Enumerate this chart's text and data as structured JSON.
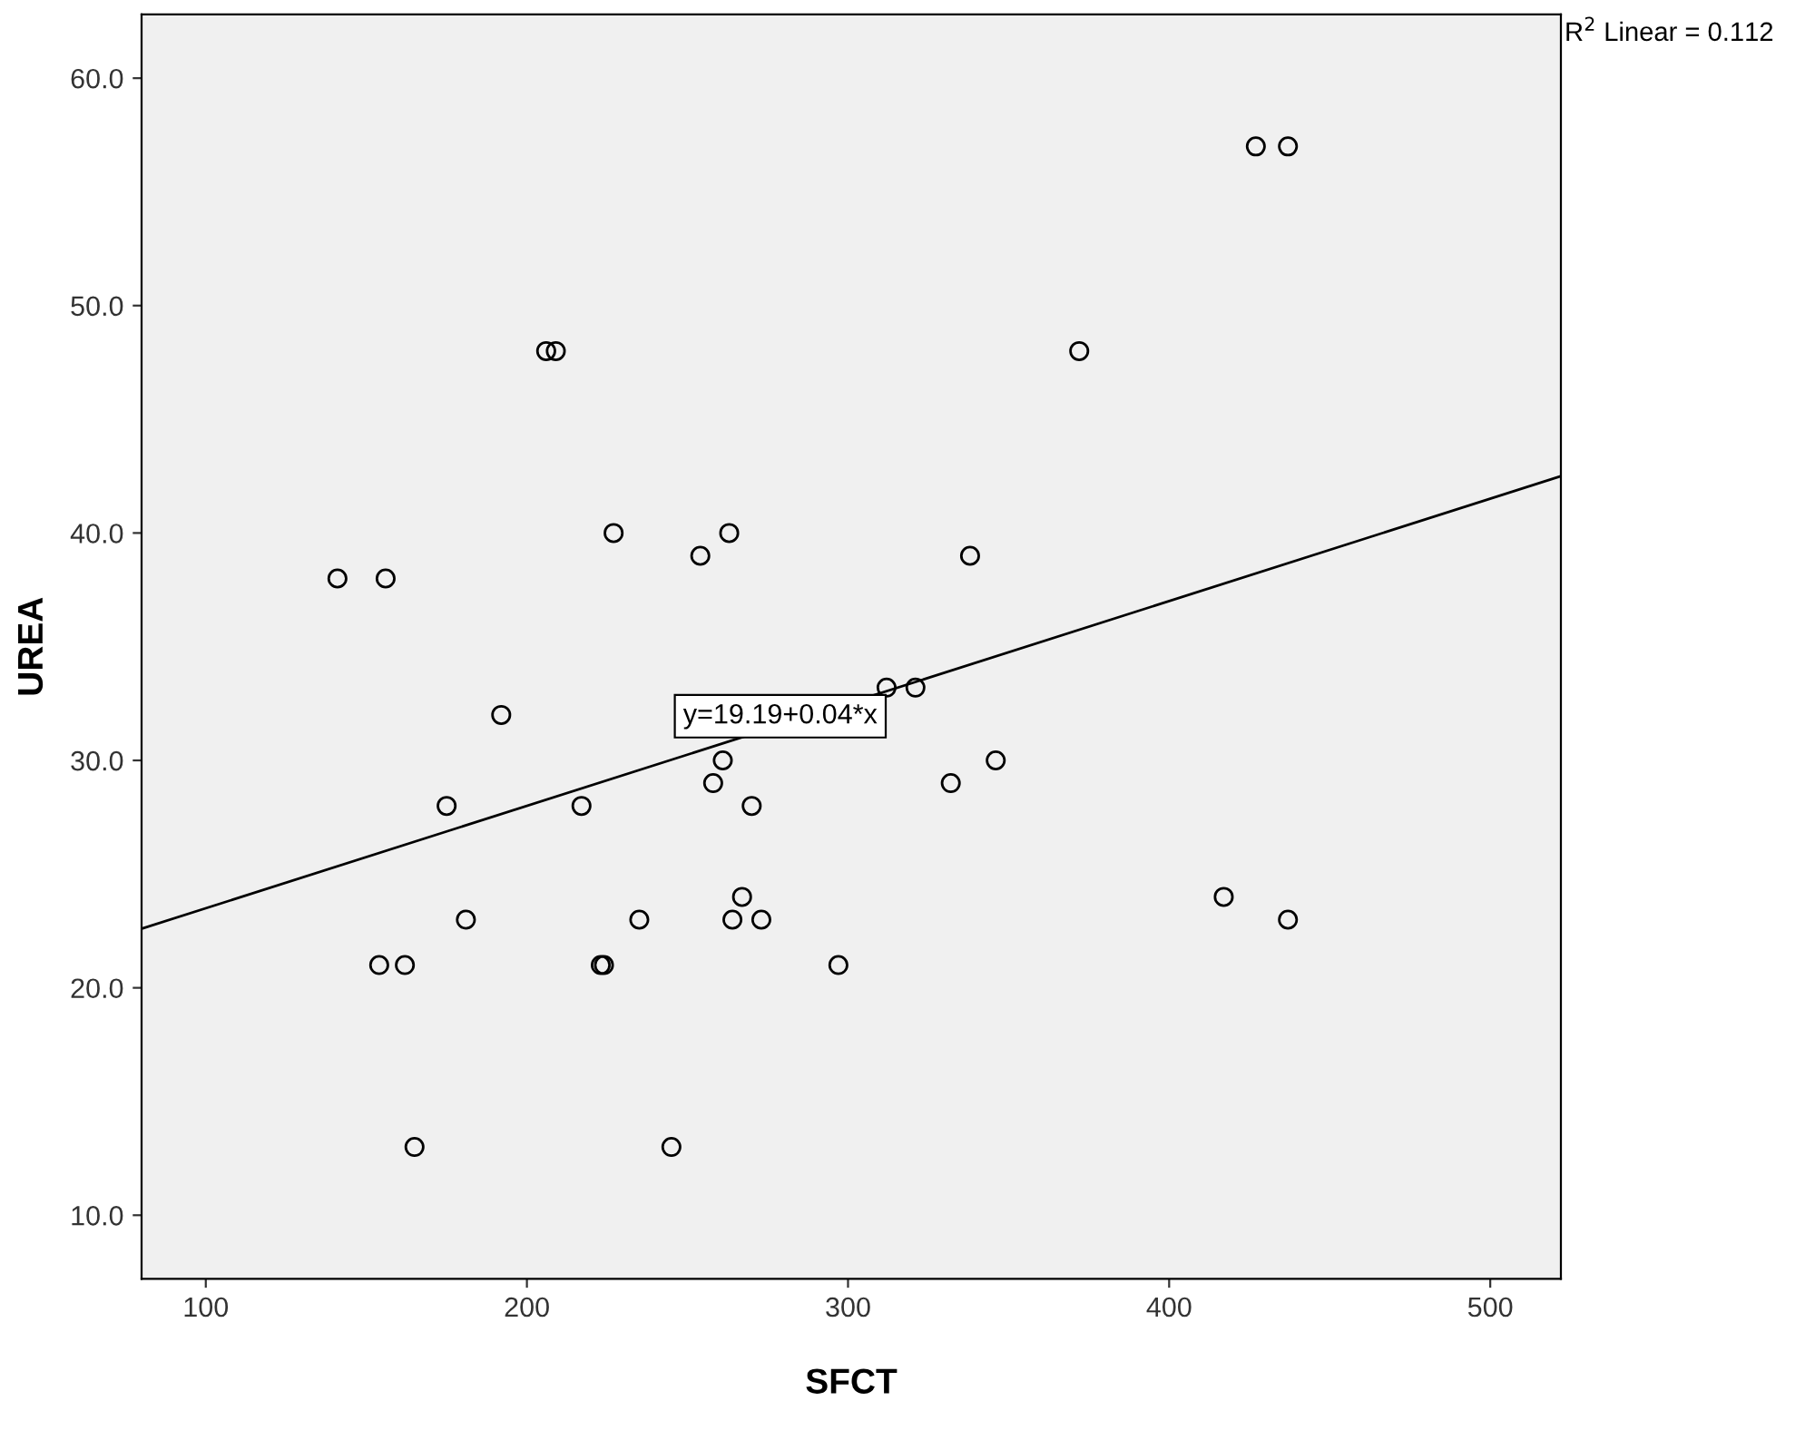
{
  "chart_data": {
    "type": "scatter",
    "xlabel": "SFCT",
    "ylabel": "UREA",
    "xlim": [
      80,
      522
    ],
    "ylim": [
      7.2,
      62.8
    ],
    "xticks": [
      100,
      200,
      300,
      400,
      500
    ],
    "yticks": [
      {
        "value": 10,
        "label": "10.0"
      },
      {
        "value": 20,
        "label": "20.0"
      },
      {
        "value": 30,
        "label": "30.0"
      },
      {
        "value": 40,
        "label": "40.0"
      },
      {
        "value": 50,
        "label": "50.0"
      },
      {
        "value": 60,
        "label": "60.0"
      }
    ],
    "grid": false,
    "legend": false,
    "series": [
      {
        "color": "#000000",
        "marker": "circle",
        "x": [
          141,
          156,
          154,
          162,
          165,
          175,
          181,
          192,
          206,
          209,
          217,
          227,
          223,
          224,
          235,
          245,
          254,
          258,
          261,
          263,
          264,
          267,
          270,
          273,
          297,
          312,
          321,
          332,
          338,
          346,
          372,
          417,
          427,
          437,
          437
        ],
        "values": [
          38,
          38,
          21,
          21,
          13,
          28,
          23,
          32,
          48,
          48,
          28,
          40,
          21,
          21,
          23,
          13,
          39,
          29,
          30,
          40,
          23,
          24,
          28,
          23,
          21,
          33.2,
          33.2,
          29,
          39,
          30,
          48,
          24,
          57,
          57,
          23
        ]
      },
      {
        "type": "line",
        "color": "#000000",
        "marker": "none",
        "line_style": "solid",
        "x": [
          80,
          522
        ],
        "values": [
          22.6,
          42.5
        ]
      }
    ],
    "annotations": [
      "y=19.19+0.04*x",
      "R$^{2}$ Linear = 0.112"
    ]
  }
}
